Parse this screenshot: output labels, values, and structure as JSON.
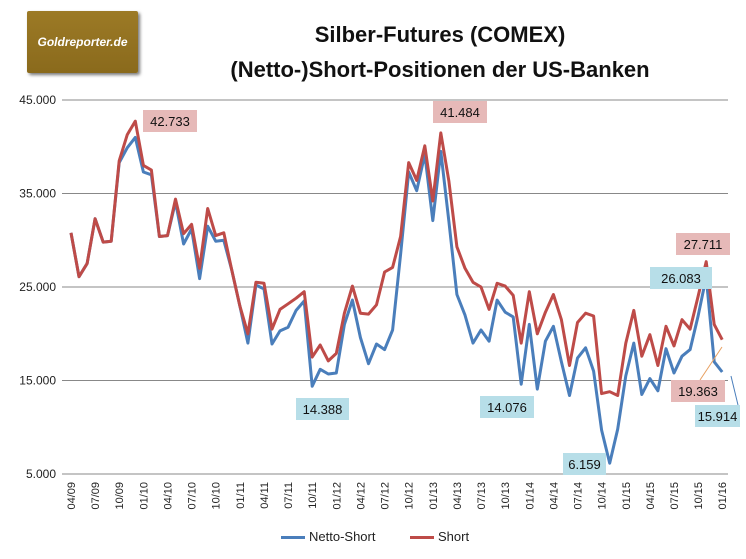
{
  "logo_text": "Goldreporter.de",
  "chart_data": {
    "type": "line",
    "title": [
      "Silber-Futures (COMEX)",
      "(Netto-)Short-Positionen der US-Banken"
    ],
    "ylim": [
      5000,
      45000
    ],
    "yticks": [
      5000,
      15000,
      25000,
      35000,
      45000
    ],
    "ytick_labels": [
      "5.000",
      "15.000",
      "25.000",
      "35.000",
      "45.000"
    ],
    "grid": true,
    "x_start": "04/09",
    "xtick_labels": [
      "04/09",
      "07/09",
      "10/09",
      "01/10",
      "04/10",
      "07/10",
      "10/10",
      "01/11",
      "04/11",
      "07/11",
      "10/11",
      "01/12",
      "04/12",
      "07/12",
      "10/12",
      "01/13",
      "04/13",
      "07/13",
      "10/13",
      "01/14",
      "04/14",
      "07/14",
      "10/14",
      "01/15",
      "04/15",
      "07/15",
      "10/15",
      "01/16"
    ],
    "legend_position": "bottom",
    "series": [
      {
        "name": "Netto-Short",
        "color": "#4a7ebb",
        "values": [
          30800,
          26100,
          27500,
          32300,
          29800,
          29900,
          38300,
          39900,
          41000,
          37300,
          37000,
          30400,
          30500,
          34100,
          29600,
          31200,
          25900,
          31500,
          29900,
          30000,
          26800,
          23000,
          19000,
          25200,
          24800,
          18900,
          20300,
          20700,
          22500,
          23500,
          14388,
          16200,
          15700,
          15800,
          21000,
          23600,
          19600,
          16800,
          18900,
          18300,
          20400,
          28500,
          37300,
          35300,
          39200,
          32100,
          39500,
          32000,
          24200,
          22000,
          19000,
          20400,
          19200,
          23600,
          22300,
          21800,
          14600,
          21000,
          14076,
          19200,
          20800,
          17000,
          13400,
          17400,
          18500,
          16000,
          9700,
          6159,
          9800,
          15500,
          19000,
          13500,
          15200,
          13900,
          18400,
          15800,
          17600,
          18300,
          21900,
          26083,
          17000,
          15914
        ]
      },
      {
        "name": "Short",
        "color": "#be4b48",
        "values": [
          30800,
          26100,
          27500,
          32300,
          29800,
          29900,
          38500,
          41300,
          42733,
          38000,
          37500,
          30400,
          30500,
          34400,
          30700,
          31700,
          27000,
          33400,
          30500,
          30800,
          26800,
          23000,
          20000,
          25500,
          25400,
          20500,
          22600,
          23200,
          23800,
          24500,
          17500,
          18800,
          17100,
          17900,
          22200,
          25100,
          22200,
          22100,
          23100,
          26600,
          27100,
          30400,
          38300,
          36400,
          40100,
          34200,
          41484,
          36300,
          29300,
          27000,
          25500,
          25000,
          22600,
          25400,
          25100,
          24100,
          19000,
          24500,
          20000,
          22300,
          24200,
          21500,
          16600,
          21200,
          22200,
          21900,
          13600,
          13800,
          13400,
          19000,
          22500,
          17600,
          19900,
          16600,
          20800,
          18700,
          21500,
          20500,
          24000,
          27711,
          21000,
          19363
        ]
      }
    ],
    "annotations": [
      {
        "text": "42.733",
        "series": "Short",
        "color": "#e6b9b8"
      },
      {
        "text": "41.484",
        "series": "Short",
        "color": "#e6b9b8"
      },
      {
        "text": "14.388",
        "series": "Netto-Short",
        "color": "#b7dee8"
      },
      {
        "text": "14.076",
        "series": "Netto-Short",
        "color": "#b7dee8"
      },
      {
        "text": "6.159",
        "series": "Netto-Short",
        "color": "#b7dee8"
      },
      {
        "text": "26.083",
        "series": "Netto-Short",
        "color": "#b7dee8"
      },
      {
        "text": "27.711",
        "series": "Short",
        "color": "#e6b9b8"
      },
      {
        "text": "19.363",
        "series": "Short",
        "color": "#e6b9b8"
      },
      {
        "text": "15.914",
        "series": "Netto-Short",
        "color": "#b7dee8"
      }
    ]
  }
}
